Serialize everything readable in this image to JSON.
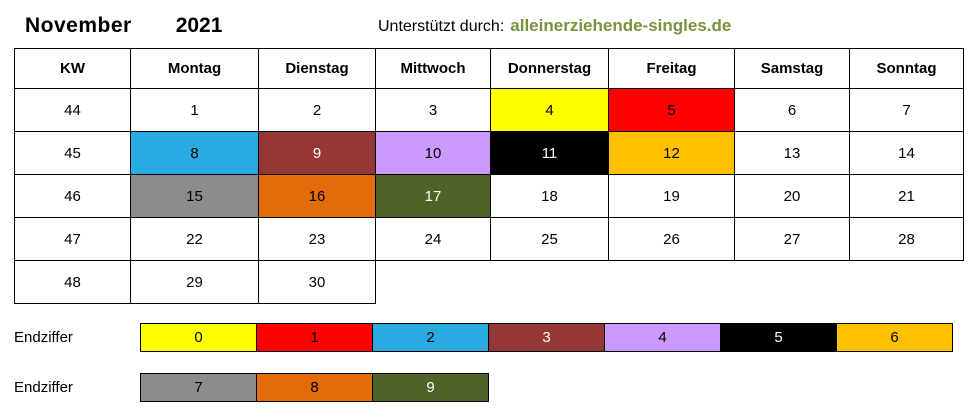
{
  "header": {
    "month": "November",
    "year": "2021",
    "supported_by_label": "Unterstützt durch:",
    "supported_by_site": "alleinerziehende-singles.de",
    "site_color": "#77933c"
  },
  "calendar": {
    "columns": [
      "KW",
      "Montag",
      "Dienstag",
      "Mittwoch",
      "Donnerstag",
      "Freitag",
      "Samstag",
      "Sonntag"
    ],
    "rows": [
      {
        "kw": "44",
        "days": [
          {
            "d": "1"
          },
          {
            "d": "2"
          },
          {
            "d": "3"
          },
          {
            "d": "4",
            "bg": "#ffff00",
            "fg": "#000000"
          },
          {
            "d": "5",
            "bg": "#ff0000",
            "fg": "#000000"
          },
          {
            "d": "6"
          },
          {
            "d": "7"
          }
        ]
      },
      {
        "kw": "45",
        "days": [
          {
            "d": "8",
            "bg": "#29abe2",
            "fg": "#000000"
          },
          {
            "d": "9",
            "bg": "#953735",
            "fg": "#ffffff"
          },
          {
            "d": "10",
            "bg": "#cc99ff",
            "fg": "#000000"
          },
          {
            "d": "11",
            "bg": "#000000",
            "fg": "#ffffff"
          },
          {
            "d": "12",
            "bg": "#ffc000",
            "fg": "#000000"
          },
          {
            "d": "13"
          },
          {
            "d": "14"
          }
        ]
      },
      {
        "kw": "46",
        "days": [
          {
            "d": "15",
            "bg": "#8c8c8c",
            "fg": "#000000"
          },
          {
            "d": "16",
            "bg": "#e36c0a",
            "fg": "#000000"
          },
          {
            "d": "17",
            "bg": "#4f6228",
            "fg": "#ffffff"
          },
          {
            "d": "18"
          },
          {
            "d": "19"
          },
          {
            "d": "20"
          },
          {
            "d": "21"
          }
        ]
      },
      {
        "kw": "47",
        "days": [
          {
            "d": "22"
          },
          {
            "d": "23"
          },
          {
            "d": "24"
          },
          {
            "d": "25"
          },
          {
            "d": "26"
          },
          {
            "d": "27"
          },
          {
            "d": "28"
          }
        ]
      },
      {
        "kw": "48",
        "days": [
          {
            "d": "29"
          },
          {
            "d": "30"
          }
        ]
      }
    ]
  },
  "legend": {
    "label": "Endziffer",
    "rows": [
      [
        {
          "d": "0",
          "bg": "#ffff00",
          "fg": "#000000"
        },
        {
          "d": "1",
          "bg": "#ff0000",
          "fg": "#000000"
        },
        {
          "d": "2",
          "bg": "#29abe2",
          "fg": "#000000"
        },
        {
          "d": "3",
          "bg": "#953735",
          "fg": "#ffffff"
        },
        {
          "d": "4",
          "bg": "#cc99ff",
          "fg": "#000000"
        },
        {
          "d": "5",
          "bg": "#000000",
          "fg": "#ffffff"
        },
        {
          "d": "6",
          "bg": "#ffc000",
          "fg": "#000000"
        }
      ],
      [
        {
          "d": "7",
          "bg": "#8c8c8c",
          "fg": "#000000"
        },
        {
          "d": "8",
          "bg": "#e36c0a",
          "fg": "#000000"
        },
        {
          "d": "9",
          "bg": "#4f6228",
          "fg": "#ffffff"
        }
      ]
    ]
  }
}
